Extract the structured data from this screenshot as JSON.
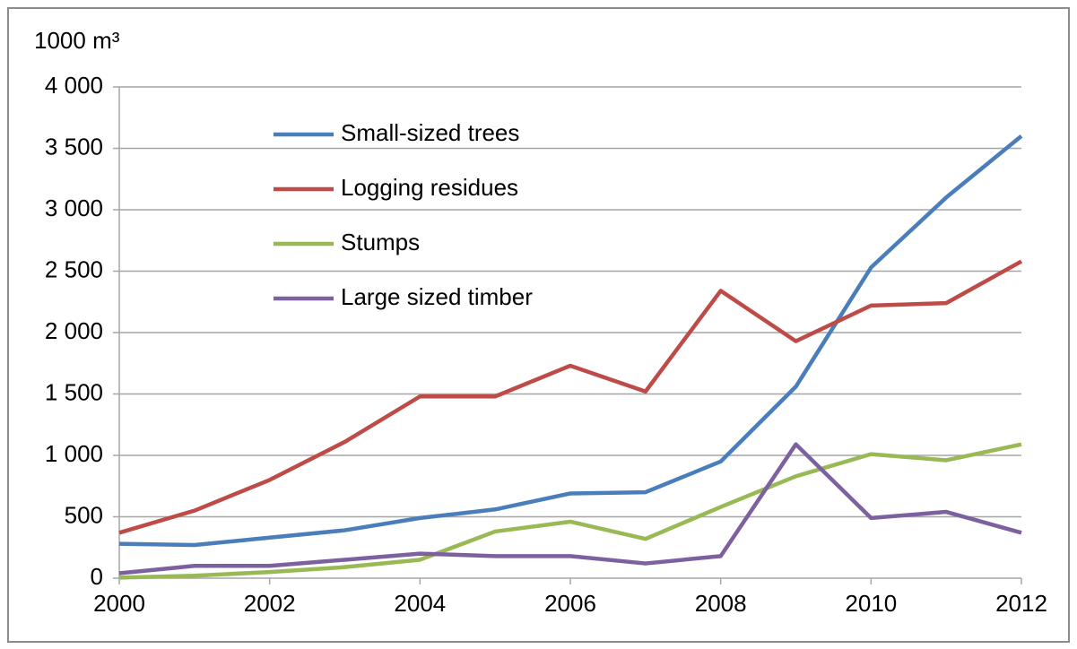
{
  "chart_data": {
    "type": "line",
    "y_label": "1000 m³",
    "x": [
      2000,
      2001,
      2002,
      2003,
      2004,
      2005,
      2006,
      2007,
      2008,
      2009,
      2010,
      2011,
      2012
    ],
    "xlim": [
      2000,
      2012
    ],
    "xticks": [
      2000,
      2002,
      2004,
      2006,
      2008,
      2010,
      2012
    ],
    "ylim": [
      0,
      4000
    ],
    "yticks": [
      0,
      500,
      {
        "value": 1000,
        "label": "1 000"
      },
      {
        "value": 1500,
        "label": "1 500"
      },
      {
        "value": 2000,
        "label": "2 000"
      },
      {
        "value": 2500,
        "label": "2 500"
      },
      {
        "value": 3000,
        "label": "3 000"
      },
      {
        "value": 3500,
        "label": "3 500"
      },
      {
        "value": 4000,
        "label": "4 000"
      }
    ],
    "grid": true,
    "legend": "upper-left",
    "series": [
      {
        "name": "Small-sized trees",
        "color": "#4a7ebb",
        "values": [
          280,
          270,
          330,
          390,
          490,
          560,
          690,
          700,
          950,
          1560,
          2530,
          3100,
          3600
        ]
      },
      {
        "name": "Logging residues",
        "color": "#be4b48",
        "values": [
          370,
          550,
          800,
          1110,
          1480,
          1480,
          1730,
          1520,
          2340,
          1930,
          2220,
          2240,
          2580
        ]
      },
      {
        "name": "Stumps",
        "color": "#98b954",
        "values": [
          5,
          20,
          50,
          90,
          150,
          380,
          460,
          320,
          580,
          830,
          1010,
          960,
          1090
        ]
      },
      {
        "name": "Large sized timber",
        "color": "#7d60a0",
        "values": [
          40,
          100,
          100,
          150,
          200,
          180,
          180,
          120,
          180,
          1090,
          490,
          540,
          370
        ]
      }
    ]
  }
}
